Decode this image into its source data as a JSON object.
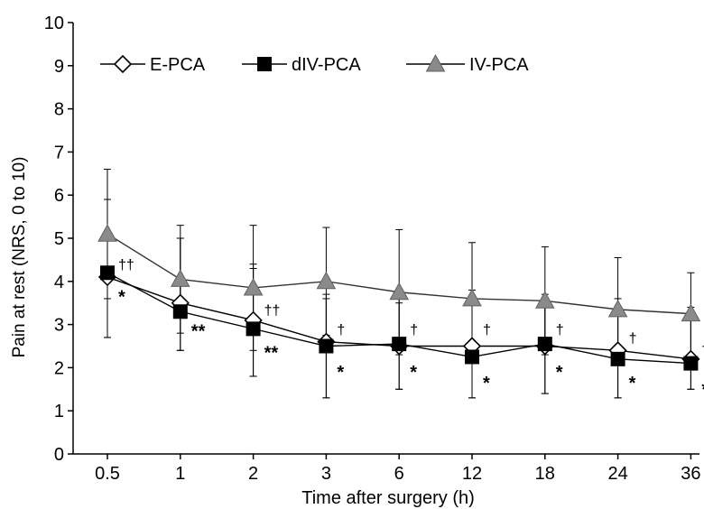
{
  "chart_data": {
    "type": "line",
    "categories": [
      "0.5",
      "1",
      "2",
      "3",
      "6",
      "12",
      "18",
      "24",
      "36"
    ],
    "xlabel": "Time after surgery (h)",
    "ylabel": "Pain at rest (NRS, 0 to 10)",
    "ylim": [
      0,
      10
    ],
    "yticks": [
      "0",
      "1",
      "2",
      "3",
      "4",
      "5",
      "6",
      "7",
      "8",
      "9",
      "10"
    ],
    "legend_position": "top-left",
    "series": [
      {
        "name": "E-PCA",
        "marker": "open-diamond",
        "color": "#000000",
        "values": [
          4.1,
          3.5,
          3.1,
          2.6,
          2.5,
          2.5,
          2.5,
          2.4,
          2.2
        ],
        "err_upper": [
          5.9,
          5.0,
          4.4,
          3.7,
          3.6,
          3.8,
          3.7,
          3.6,
          3.4
        ],
        "err_lower": [
          2.7,
          2.4,
          1.8,
          1.3,
          1.5,
          1.3,
          1.4,
          1.3,
          1.5
        ]
      },
      {
        "name": "dIV-PCA",
        "marker": "filled-square",
        "color": "#000000",
        "values": [
          4.2,
          3.3,
          2.9,
          2.5,
          2.55,
          2.25,
          2.55,
          2.2,
          2.1
        ],
        "err_upper": [
          5.9,
          5.0,
          4.3,
          3.6,
          3.5,
          3.6,
          3.6,
          3.3,
          3.2
        ],
        "err_lower": [
          2.7,
          2.4,
          1.8,
          1.3,
          1.5,
          1.3,
          1.4,
          1.3,
          1.5
        ]
      },
      {
        "name": "IV-PCA",
        "marker": "filled-triangle",
        "color": "#808080",
        "values": [
          5.1,
          4.05,
          3.85,
          4.0,
          3.75,
          3.6,
          3.55,
          3.35,
          3.25
        ],
        "err_upper": [
          6.6,
          5.3,
          5.3,
          5.25,
          5.2,
          4.9,
          4.8,
          4.55,
          4.2
        ],
        "err_lower": [
          3.6,
          2.8,
          2.4,
          2.75,
          2.3,
          2.3,
          2.3,
          2.15,
          2.3
        ]
      }
    ],
    "annotations": [
      {
        "category": "0.5",
        "text": "††",
        "y": 4.4
      },
      {
        "category": "0.5",
        "text": "*",
        "y": 3.8
      },
      {
        "category": "1",
        "text": "**",
        "y": 3.0
      },
      {
        "category": "2",
        "text": "††",
        "y": 3.35
      },
      {
        "category": "2",
        "text": "**",
        "y": 2.5
      },
      {
        "category": "3",
        "text": "†",
        "y": 2.9
      },
      {
        "category": "3",
        "text": "*",
        "y": 2.05
      },
      {
        "category": "6",
        "text": "†",
        "y": 2.9
      },
      {
        "category": "6",
        "text": "*",
        "y": 2.05
      },
      {
        "category": "12",
        "text": "†",
        "y": 2.9
      },
      {
        "category": "12",
        "text": "*",
        "y": 1.8
      },
      {
        "category": "18",
        "text": "†",
        "y": 2.9
      },
      {
        "category": "18",
        "text": "*",
        "y": 2.05
      },
      {
        "category": "24",
        "text": "†",
        "y": 2.7
      },
      {
        "category": "24",
        "text": "*",
        "y": 1.8
      },
      {
        "category": "36",
        "text": "†",
        "y": 2.45
      },
      {
        "category": "36",
        "text": "*",
        "y": 1.65
      }
    ]
  }
}
